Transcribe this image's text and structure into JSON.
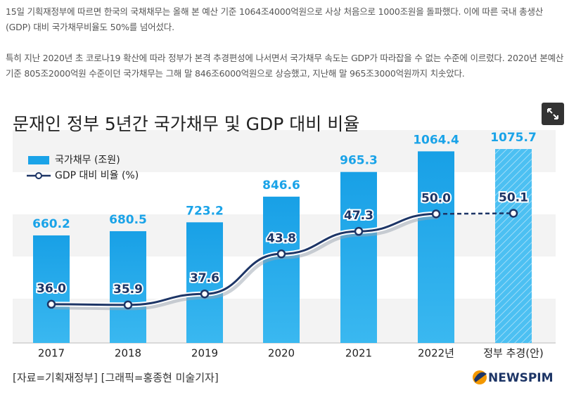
{
  "article": {
    "paragraphs": [
      "15일 기획재정부에 따르면 한국의 국채채무는 올해 본 예산 기준 1064조4000억원으로 사상 처음으로 1000조원을 돌파했다. 이에 따른 국내 총생산(GDP) 대비 국가채무비율도 50%를 넘어섰다.",
      "특히 지난 2020년 초 코로나19 확산에 따라 정부가 본격 추경편성에 나서면서 국가채무 속도는 GDP가 따라잡을 수 없는 수준에 이르렀다. 2020년 본예산 기준 805조2000억원 수준이던 국가채무는 그해 말 846조6000억원으로 상승했고, 지난해 말 965조3000억원까지 치솟았다."
    ]
  },
  "chart_data": {
    "type": "bar-line",
    "title": "문재인 정부 5년간 국가채무 및 GDP 대비 비율",
    "categories": [
      "2017",
      "2018",
      "2019",
      "2020",
      "2021",
      "2022년",
      "정부 추경(안)"
    ],
    "series": [
      {
        "name": "국가채무 (조원)",
        "type": "bar",
        "color": "#1aa3e8",
        "values": [
          660.2,
          680.5,
          723.2,
          846.6,
          965.3,
          1064.4,
          1075.7
        ]
      },
      {
        "name": "GDP 대비 비율 (%)",
        "type": "line",
        "axis": "y2",
        "color": "#1d3566",
        "values": [
          36.0,
          35.9,
          37.6,
          43.8,
          47.3,
          50.0,
          50.1
        ],
        "value_labels": [
          "36.0",
          "35.9",
          "37.6",
          "43.8",
          "47.3",
          "50.0",
          "50.1"
        ]
      }
    ],
    "ylim": [
      143,
      1167
    ],
    "y2lim": [
      30,
      63
    ],
    "source": "[자료=기획재정부] [그래픽=홍종현 미술기자]",
    "logo": "NEWSPIM"
  }
}
